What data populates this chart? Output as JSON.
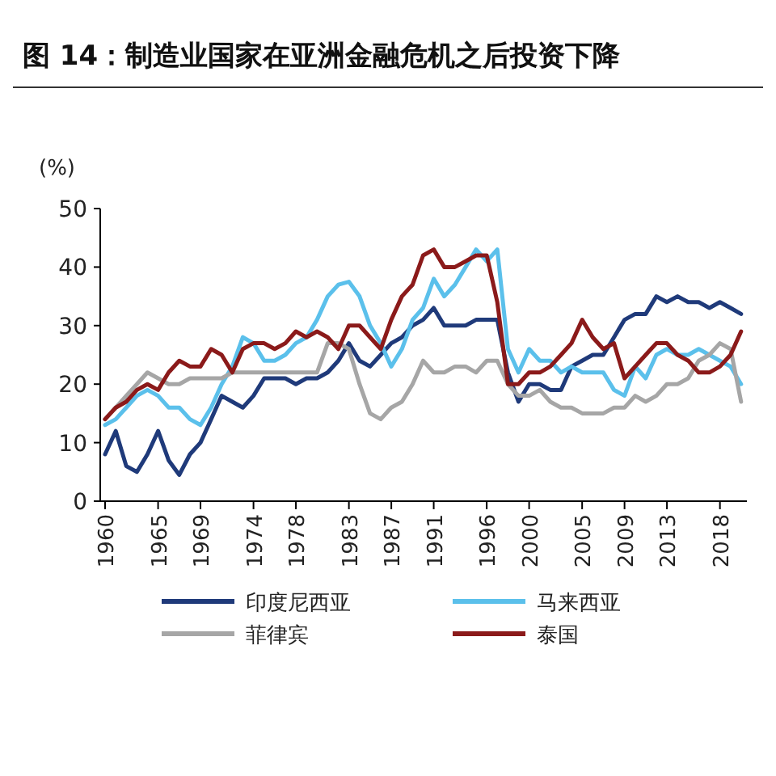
{
  "chart_data": {
    "type": "line",
    "title": "图 14：制造业国家在亚洲金融危机之后投资下降",
    "ylabel": "(%)",
    "categories": [
      "1960",
      null,
      null,
      null,
      null,
      "1965",
      null,
      null,
      null,
      "1969",
      null,
      null,
      null,
      null,
      "1974",
      null,
      null,
      null,
      "1978",
      null,
      null,
      null,
      null,
      "1983",
      null,
      null,
      null,
      "1987",
      null,
      null,
      null,
      "1991",
      null,
      null,
      null,
      null,
      "1996",
      null,
      null,
      null,
      "2000",
      null,
      null,
      null,
      null,
      "2005",
      null,
      null,
      null,
      "2009",
      null,
      null,
      null,
      "2013",
      null,
      null,
      null,
      null,
      "2018",
      null,
      null
    ],
    "ylim": [
      0,
      50
    ],
    "yticks": [
      0,
      10,
      20,
      30,
      40,
      50
    ],
    "grid": false,
    "legend": "bottom",
    "series": [
      {
        "name": "印度尼西亚",
        "color": "#1f3a7a",
        "values": [
          8,
          12,
          6,
          5,
          8,
          12,
          7,
          4.5,
          8,
          10,
          14,
          18,
          17,
          16,
          18,
          21,
          21,
          21,
          20,
          21,
          21,
          22,
          24,
          27,
          24,
          23,
          25,
          27,
          28,
          30,
          31,
          33,
          30,
          30,
          30,
          31,
          31,
          31,
          22,
          17,
          20,
          20,
          19,
          19,
          23,
          24,
          25,
          25,
          28,
          31,
          32,
          32,
          35,
          34,
          35,
          34,
          34,
          33,
          34,
          33,
          32
        ]
      },
      {
        "name": "马来西亚",
        "color": "#5bc0eb",
        "values": [
          13,
          14,
          16,
          18,
          19,
          18,
          16,
          16,
          14,
          13,
          16,
          20,
          23,
          28,
          27,
          24,
          24,
          25,
          27,
          28,
          31,
          35,
          37,
          37.5,
          35,
          30,
          27,
          23,
          26,
          31,
          33,
          38,
          35,
          37,
          40,
          43,
          41,
          43,
          26,
          22,
          26,
          24,
          24,
          22,
          23,
          22,
          22,
          22,
          19,
          18,
          23,
          21,
          25,
          26,
          25,
          25,
          26,
          25,
          24,
          23,
          20
        ]
      },
      {
        "name": "菲律宾",
        "color": "#a6a6a6",
        "values": [
          14,
          16,
          18,
          20,
          22,
          21,
          20,
          20,
          21,
          21,
          21,
          21,
          22,
          22,
          22,
          22,
          22,
          22,
          22,
          22,
          22,
          27,
          27,
          26,
          20,
          15,
          14,
          16,
          17,
          20,
          24,
          22,
          22,
          23,
          23,
          22,
          24,
          24,
          20,
          18,
          18,
          19,
          17,
          16,
          16,
          15,
          15,
          15,
          16,
          16,
          18,
          17,
          18,
          20,
          20,
          21,
          24,
          25,
          27,
          26,
          17
        ]
      },
      {
        "name": "泰国",
        "color": "#8b1a1a",
        "values": [
          14,
          16,
          17,
          19,
          20,
          19,
          22,
          24,
          23,
          23,
          26,
          25,
          22,
          26,
          27,
          27,
          26,
          27,
          29,
          28,
          29,
          28,
          26,
          30,
          30,
          28,
          26,
          31,
          35,
          37,
          42,
          43,
          40,
          40,
          41,
          42,
          42,
          34,
          20,
          20,
          22,
          22,
          23,
          25,
          27,
          31,
          28,
          26,
          27,
          21,
          23,
          25,
          27,
          27,
          25,
          24,
          22,
          22,
          23,
          25,
          29
        ]
      }
    ]
  }
}
